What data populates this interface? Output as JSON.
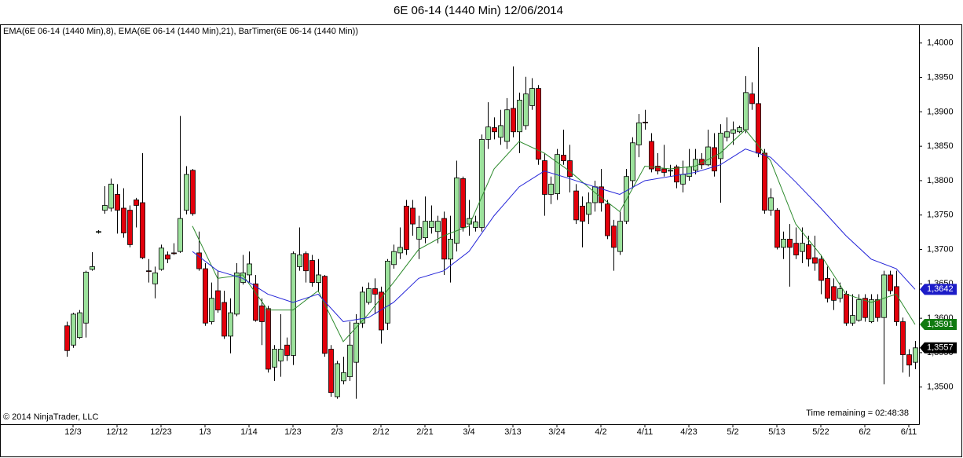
{
  "chart_data": {
    "type": "candlestick",
    "title": "6E 06-14 (1440 Min)  12/06/2014",
    "subtitle": "EMA(6E 06-14 (1440 Min),8), EMA(6E 06-14 (1440 Min),21), BarTimer(6E 06-14 (1440 Min))",
    "annotations": [
      "© 2014 NinjaTrader, LLC",
      "Time remaining = 02:48:38"
    ],
    "categories": [
      null,
      "12/3",
      null,
      null,
      null,
      null,
      null,
      null,
      "12/12",
      null,
      null,
      null,
      null,
      null,
      null,
      "12/23",
      null,
      null,
      null,
      null,
      null,
      null,
      "1/3",
      null,
      null,
      null,
      null,
      null,
      null,
      "1/14",
      null,
      null,
      null,
      null,
      null,
      null,
      "1/23",
      null,
      null,
      null,
      null,
      null,
      null,
      "2/3",
      null,
      null,
      null,
      null,
      null,
      null,
      "2/12",
      null,
      null,
      null,
      null,
      null,
      null,
      "2/21",
      null,
      null,
      null,
      null,
      null,
      null,
      "3/4",
      null,
      null,
      null,
      null,
      null,
      null,
      "3/13",
      null,
      null,
      null,
      null,
      null,
      null,
      "3/24",
      null,
      null,
      null,
      null,
      null,
      null,
      "4/2",
      null,
      null,
      null,
      null,
      null,
      null,
      "4/11",
      null,
      null,
      null,
      null,
      null,
      null,
      "4/23",
      null,
      null,
      null,
      null,
      null,
      null,
      "5/2",
      null,
      null,
      null,
      null,
      null,
      null,
      "5/13",
      null,
      null,
      null,
      null,
      null,
      null,
      "5/22",
      null,
      null,
      null,
      null,
      null,
      null,
      "6/2",
      null,
      null,
      null,
      null,
      null,
      null,
      "6/11",
      null
    ],
    "open": [
      1.3589,
      1.3561,
      1.3572,
      1.3593,
      1.3671,
      1.3725,
      1.3757,
      1.376,
      1.378,
      1.376,
      1.3757,
      1.3772,
      1.3768,
      1.3669,
      1.365,
      1.3671,
      1.3692,
      1.3695,
      1.3697,
      1.3757,
      1.3815,
      1.3695,
      1.3672,
      1.3595,
      1.364,
      1.3623,
      1.3574,
      1.3606,
      1.3652,
      1.3663,
      1.365,
      1.3618,
      1.3614,
      1.3529,
      1.3538,
      1.3561,
      1.3546,
      1.3675,
      1.3694,
      1.3684,
      1.3652,
      1.3661,
      1.3555,
      1.3486,
      1.3509,
      1.3515,
      1.3536,
      1.3593,
      1.3623,
      1.3643,
      1.3638,
      1.3593,
      1.3678,
      1.3695,
      1.3763,
      1.376,
      1.3715,
      1.3717,
      1.3732,
      1.3726,
      1.3745,
      1.3686,
      1.3709,
      1.3803,
      1.3737,
      1.3732,
      1.3732,
      1.386,
      1.3877,
      1.3863,
      1.3857,
      1.3905,
      1.3871,
      1.388,
      1.3909,
      1.3934,
      1.3829,
      1.378,
      1.3781,
      1.3837,
      1.3829,
      1.3785,
      1.3763,
      1.3751,
      1.3768,
      1.3791,
      1.3766,
      1.3734,
      1.3697,
      1.3741,
      1.38,
      1.3852,
      1.3885,
      1.3857,
      1.3821,
      1.3817,
      1.3814,
      1.382,
      1.3795,
      1.3806,
      1.3815,
      1.3831,
      1.3823,
      1.3848,
      1.3832,
      1.3863,
      1.3869,
      1.3871,
      1.3874,
      1.3926,
      1.3912,
      1.384,
      1.3757,
      1.3757,
      1.3703,
      1.3715,
      1.3709,
      1.3697,
      1.3707,
      1.3688,
      1.3686,
      1.3658,
      1.3646,
      1.3629,
      1.3635,
      1.3593,
      1.3597,
      1.3629,
      1.3595,
      1.3627,
      1.3601,
      1.3663,
      1.3646,
      1.3595,
      1.3547,
      1.3536
    ],
    "high": [
      1.3595,
      1.3608,
      1.3612,
      1.3669,
      1.3696,
      1.3728,
      1.3792,
      1.3803,
      1.3795,
      1.3789,
      1.3764,
      1.3775,
      1.384,
      1.3686,
      1.3675,
      1.3707,
      1.3697,
      1.3709,
      1.3894,
      1.3821,
      1.3817,
      1.3726,
      1.368,
      1.3652,
      1.3669,
      1.364,
      1.3629,
      1.368,
      1.3692,
      1.3697,
      1.3663,
      1.3629,
      1.3618,
      1.3561,
      1.3606,
      1.3572,
      1.3697,
      1.3732,
      1.3697,
      1.3692,
      1.3686,
      1.3663,
      1.3561,
      1.3538,
      1.3544,
      1.3595,
      1.3606,
      1.3646,
      1.3652,
      1.3658,
      1.3646,
      1.3686,
      1.3707,
      1.3732,
      1.3772,
      1.3772,
      1.3749,
      1.3777,
      1.3764,
      1.3749,
      1.3755,
      1.3749,
      1.3829,
      1.3806,
      1.3772,
      1.3749,
      1.3867,
      1.3914,
      1.3892,
      1.3903,
      1.392,
      1.3966,
      1.3928,
      1.3951,
      1.3949,
      1.3939,
      1.384,
      1.3806,
      1.3846,
      1.3874,
      1.3852,
      1.3795,
      1.3777,
      1.3783,
      1.38,
      1.3817,
      1.3772,
      1.3743,
      1.3755,
      1.3817,
      1.3863,
      1.3897,
      1.3903,
      1.3869,
      1.384,
      1.3852,
      1.3823,
      1.3823,
      1.3829,
      1.3846,
      1.3846,
      1.384,
      1.3874,
      1.3869,
      1.3882,
      1.3892,
      1.3886,
      1.388,
      1.3952,
      1.3943,
      1.3994,
      1.3846,
      1.3789,
      1.376,
      1.3726,
      1.3737,
      1.3732,
      1.3732,
      1.372,
      1.372,
      1.3692,
      1.3675,
      1.3658,
      1.3652,
      1.364,
      1.3635,
      1.3635,
      1.3635,
      1.3635,
      1.3635,
      1.3669,
      1.3669,
      1.3669,
      1.3601,
      1.3555,
      1.3567
    ],
    "low": [
      1.3544,
      1.3557,
      1.357,
      1.3572,
      1.3669,
      1.3723,
      1.3752,
      1.3755,
      1.3723,
      1.3717,
      1.3703,
      1.3732,
      1.3686,
      1.3652,
      1.3629,
      1.3669,
      1.368,
      1.3692,
      1.3695,
      1.3751,
      1.3749,
      1.3669,
      1.3589,
      1.3591,
      1.3608,
      1.357,
      1.3549,
      1.3603,
      1.3649,
      1.3652,
      1.3595,
      1.3561,
      1.3521,
      1.3509,
      1.3515,
      1.3538,
      1.3532,
      1.3669,
      1.3652,
      1.3646,
      1.3638,
      1.3544,
      1.3486,
      1.3483,
      1.3504,
      1.3509,
      1.3483,
      1.3586,
      1.362,
      1.3606,
      1.3563,
      1.3583,
      1.3672,
      1.3686,
      1.3692,
      1.372,
      1.3686,
      1.3709,
      1.3723,
      1.3709,
      1.3663,
      1.3652,
      1.3697,
      1.3726,
      1.372,
      1.3726,
      1.3726,
      1.3846,
      1.386,
      1.3852,
      1.3846,
      1.3863,
      1.384,
      1.3874,
      1.3903,
      1.3823,
      1.3749,
      1.3766,
      1.3772,
      1.3823,
      1.3783,
      1.3737,
      1.3703,
      1.3737,
      1.3755,
      1.3755,
      1.3715,
      1.3669,
      1.3692,
      1.3737,
      1.3789,
      1.3834,
      1.3874,
      1.3812,
      1.3809,
      1.3806,
      1.3806,
      1.3789,
      1.3783,
      1.38,
      1.3809,
      1.3817,
      1.3821,
      1.3806,
      1.3768,
      1.3857,
      1.3852,
      1.3869,
      1.3869,
      1.3903,
      1.3834,
      1.3752,
      1.3749,
      1.37,
      1.3686,
      1.3646,
      1.3686,
      1.368,
      1.3675,
      1.3669,
      1.3635,
      1.3623,
      1.3612,
      1.3623,
      1.3589,
      1.3589,
      1.3595,
      1.3595,
      1.3593,
      1.3595,
      1.3504,
      1.3635,
      1.3589,
      1.3521,
      1.3515,
      1.3526
    ],
    "close": [
      1.3553,
      1.3606,
      1.3608,
      1.3667,
      1.3675,
      1.3726,
      1.3764,
      1.3795,
      1.3757,
      1.3724,
      1.3707,
      1.3764,
      1.3688,
      1.3668,
      1.3666,
      1.3702,
      1.3686,
      1.3694,
      1.3745,
      1.3809,
      1.3752,
      1.3672,
      1.3593,
      1.3629,
      1.3612,
      1.3574,
      1.3608,
      1.3666,
      1.3666,
      1.3679,
      1.3597,
      1.3595,
      1.3526,
      1.3555,
      1.3555,
      1.3546,
      1.3694,
      1.3692,
      1.3669,
      1.3652,
      1.3663,
      1.3549,
      1.3492,
      1.3534,
      1.3521,
      1.3561,
      1.3593,
      1.3638,
      1.3643,
      1.3635,
      1.3583,
      1.3683,
      1.3697,
      1.3703,
      1.37,
      1.3737,
      1.3732,
      1.3741,
      1.3741,
      1.3741,
      1.3686,
      1.3715,
      1.3804,
      1.3732,
      1.3745,
      1.374,
      1.386,
      1.3878,
      1.3871,
      1.388,
      1.3903,
      1.3871,
      1.3917,
      1.3926,
      1.3934,
      1.3831,
      1.378,
      1.3795,
      1.3838,
      1.3829,
      1.3806,
      1.3743,
      1.3741,
      1.3768,
      1.3791,
      1.3768,
      1.372,
      1.3703,
      1.3741,
      1.3806,
      1.3855,
      1.3884,
      1.3884,
      1.3817,
      1.3814,
      1.3812,
      1.3815,
      1.3798,
      1.3809,
      1.382,
      1.3831,
      1.3823,
      1.3849,
      1.3814,
      1.3869,
      1.3871,
      1.3874,
      1.3877,
      1.3928,
      1.3912,
      1.384,
      1.3757,
      1.3775,
      1.3703,
      1.3715,
      1.3703,
      1.3692,
      1.3709,
      1.3686,
      1.368,
      1.3655,
      1.3629,
      1.3626,
      1.3643,
      1.3593,
      1.3604,
      1.3627,
      1.3601,
      1.3627,
      1.3601,
      1.3663,
      1.364,
      1.3595,
      1.3547,
      1.3532,
      1.3557
    ],
    "last_label": "1,3557",
    "last_marker_color": "#000000",
    "up_color": "#9ce29c",
    "down_color": "#e3000b",
    "overlays": [
      {
        "color": "#2e8b2e",
        "x": [
          20,
          24,
          28,
          32,
          36,
          40,
          44,
          48,
          52,
          56,
          60,
          64,
          68,
          72,
          76,
          80,
          84,
          88,
          92,
          96,
          100,
          104,
          108,
          112,
          116,
          120,
          124,
          128,
          132,
          135
        ],
        "values": [
          1.3734,
          1.3658,
          1.3663,
          1.3612,
          1.3612,
          1.364,
          1.3566,
          1.3606,
          1.3652,
          1.37,
          1.372,
          1.3734,
          1.3817,
          1.3857,
          1.384,
          1.3814,
          1.3783,
          1.3755,
          1.3821,
          1.3817,
          1.3821,
          1.384,
          1.3874,
          1.3829,
          1.3737,
          1.3692,
          1.3635,
          1.3623,
          1.3635,
          1.3591
        ],
        "last_label": "1,3591",
        "marker_color": "#107a10"
      },
      {
        "color": "#2424d8",
        "x": [
          20,
          24,
          28,
          32,
          36,
          40,
          44,
          48,
          52,
          56,
          60,
          64,
          68,
          72,
          76,
          80,
          84,
          88,
          92,
          96,
          100,
          104,
          108,
          112,
          116,
          120,
          124,
          128,
          132,
          135
        ],
        "values": [
          1.3697,
          1.3669,
          1.3658,
          1.3635,
          1.3623,
          1.3635,
          1.3595,
          1.3601,
          1.3623,
          1.3658,
          1.3669,
          1.3697,
          1.3749,
          1.3791,
          1.3814,
          1.3803,
          1.3791,
          1.378,
          1.38,
          1.3806,
          1.3812,
          1.3823,
          1.3846,
          1.3834,
          1.3798,
          1.376,
          1.372,
          1.3686,
          1.3672,
          1.3642
        ],
        "last_label": "1,3642",
        "marker_color": "#1c1cc8"
      }
    ],
    "ylim": [
      1.3446,
      1.4026
    ],
    "yticks": [
      {
        "value": 1.35,
        "label": "1,3500"
      },
      {
        "value": 1.355,
        "label": "1,3550"
      },
      {
        "value": 1.36,
        "label": "1,3600"
      },
      {
        "value": 1.365,
        "label": "1,3650"
      },
      {
        "value": 1.37,
        "label": "1,3700"
      },
      {
        "value": 1.375,
        "label": "1,3750"
      },
      {
        "value": 1.38,
        "label": "1,3800"
      },
      {
        "value": 1.385,
        "label": "1,3850"
      },
      {
        "value": 1.39,
        "label": "1,3900"
      },
      {
        "value": 1.395,
        "label": "1,3950"
      },
      {
        "value": 1.4,
        "label": "1,4000"
      }
    ],
    "grid": false
  }
}
